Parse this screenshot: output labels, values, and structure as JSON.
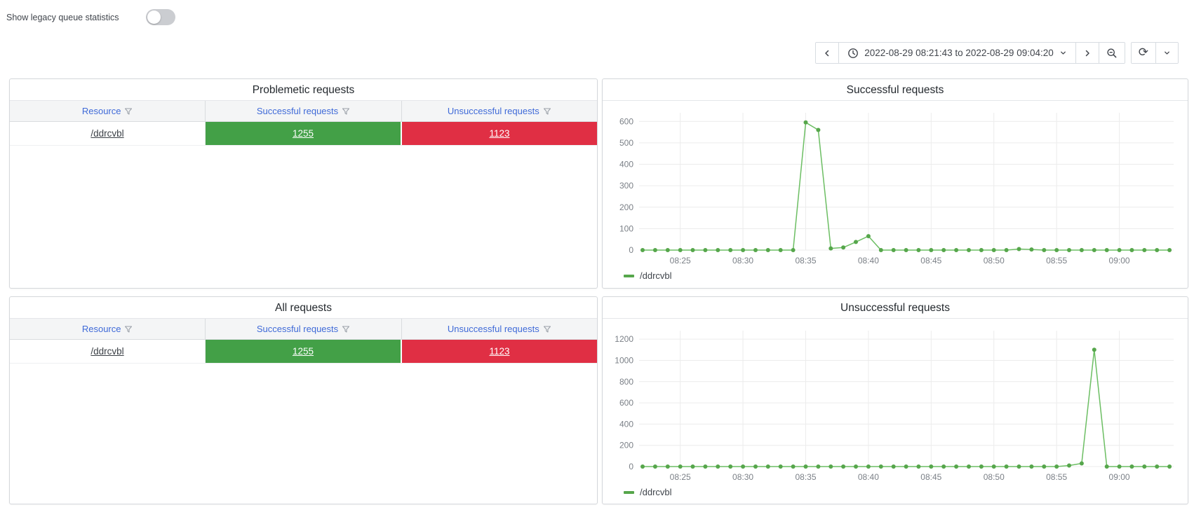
{
  "toggle": {
    "label": "Show legacy queue statistics",
    "state": "off"
  },
  "toolbar": {
    "time_range": "2022-08-29 08:21:43 to 2022-08-29 09:04:20",
    "refresh_glyph": "⟳"
  },
  "icons": [
    "toggle-switch",
    "chevron-left-icon",
    "clock-icon",
    "chevron-down-icon",
    "chevron-right-icon",
    "magnifier-minus-icon",
    "refresh-icon",
    "funnel-icon",
    "series-color-dash"
  ],
  "panels": {
    "problematic": {
      "title": "Problemetic requests"
    },
    "successful": {
      "title": "Successful requests"
    },
    "all": {
      "title": "All requests"
    },
    "unsuccessful": {
      "title": "Unsuccessful requests"
    }
  },
  "table": {
    "columns": [
      {
        "label": "Resource"
      },
      {
        "label": "Successful requests"
      },
      {
        "label": "Unsuccessful requests"
      }
    ],
    "rows": [
      {
        "resource": "/ddrcvbl",
        "successful": "1255",
        "unsuccessful": "1123"
      }
    ]
  },
  "colors": {
    "success_green": "#43A047",
    "error_red": "#E02F44",
    "line_green": "#6CBE63",
    "marker_green": "#56A64B",
    "link_blue": "#3F6AD8"
  },
  "chart_data": [
    {
      "type": "line",
      "title": "Successful requests",
      "xlabel": "",
      "ylabel": "",
      "grid": true,
      "legend_position": "bottom-left",
      "xlim_minutes": [
        21.72,
        64.33
      ],
      "ylim": [
        0,
        640
      ],
      "y_ticks": [
        0,
        100,
        200,
        300,
        400,
        500,
        600
      ],
      "x_ticks": [
        {
          "m": 25,
          "label": "08:25"
        },
        {
          "m": 30,
          "label": "08:30"
        },
        {
          "m": 35,
          "label": "08:35"
        },
        {
          "m": 40,
          "label": "08:40"
        },
        {
          "m": 45,
          "label": "08:45"
        },
        {
          "m": 50,
          "label": "08:50"
        },
        {
          "m": 55,
          "label": "08:55"
        },
        {
          "m": 60,
          "label": "09:00"
        }
      ],
      "x_minutes": [
        22,
        23,
        24,
        25,
        26,
        27,
        28,
        29,
        30,
        31,
        32,
        33,
        34,
        35,
        36,
        37,
        38,
        39,
        40,
        41,
        42,
        43,
        44,
        45,
        46,
        47,
        48,
        49,
        50,
        51,
        52,
        53,
        54,
        55,
        56,
        57,
        58,
        59,
        60,
        61,
        62,
        63,
        64
      ],
      "series": [
        {
          "name": "/ddrcvbl",
          "color": "#6CBE63",
          "marker_color": "#56A64B",
          "values": [
            0,
            0,
            0,
            0,
            0,
            0,
            0,
            0,
            0,
            0,
            0,
            0,
            0,
            595,
            560,
            8,
            12,
            38,
            65,
            0,
            0,
            0,
            0,
            0,
            0,
            0,
            0,
            0,
            0,
            0,
            5,
            3,
            0,
            0,
            0,
            0,
            0,
            0,
            0,
            0,
            0,
            0,
            0
          ]
        }
      ]
    },
    {
      "type": "line",
      "title": "Unsuccessful requests",
      "xlabel": "",
      "ylabel": "",
      "grid": true,
      "legend_position": "bottom-left",
      "xlim_minutes": [
        21.72,
        64.33
      ],
      "ylim": [
        0,
        1280
      ],
      "y_ticks": [
        0,
        200,
        400,
        600,
        800,
        1000,
        1200
      ],
      "x_ticks": [
        {
          "m": 25,
          "label": "08:25"
        },
        {
          "m": 30,
          "label": "08:30"
        },
        {
          "m": 35,
          "label": "08:35"
        },
        {
          "m": 40,
          "label": "08:40"
        },
        {
          "m": 45,
          "label": "08:45"
        },
        {
          "m": 50,
          "label": "08:50"
        },
        {
          "m": 55,
          "label": "08:55"
        },
        {
          "m": 60,
          "label": "09:00"
        }
      ],
      "x_minutes": [
        22,
        23,
        24,
        25,
        26,
        27,
        28,
        29,
        30,
        31,
        32,
        33,
        34,
        35,
        36,
        37,
        38,
        39,
        40,
        41,
        42,
        43,
        44,
        45,
        46,
        47,
        48,
        49,
        50,
        51,
        52,
        53,
        54,
        55,
        56,
        57,
        58,
        59,
        60,
        61,
        62,
        63,
        64
      ],
      "series": [
        {
          "name": "/ddrcvbl",
          "color": "#6CBE63",
          "marker_color": "#56A64B",
          "values": [
            0,
            0,
            0,
            0,
            0,
            0,
            0,
            0,
            0,
            0,
            0,
            0,
            0,
            0,
            0,
            0,
            0,
            0,
            0,
            0,
            0,
            0,
            0,
            0,
            0,
            0,
            0,
            0,
            0,
            0,
            0,
            0,
            0,
            0,
            10,
            30,
            1100,
            0,
            0,
            0,
            0,
            0,
            0
          ]
        }
      ]
    }
  ]
}
